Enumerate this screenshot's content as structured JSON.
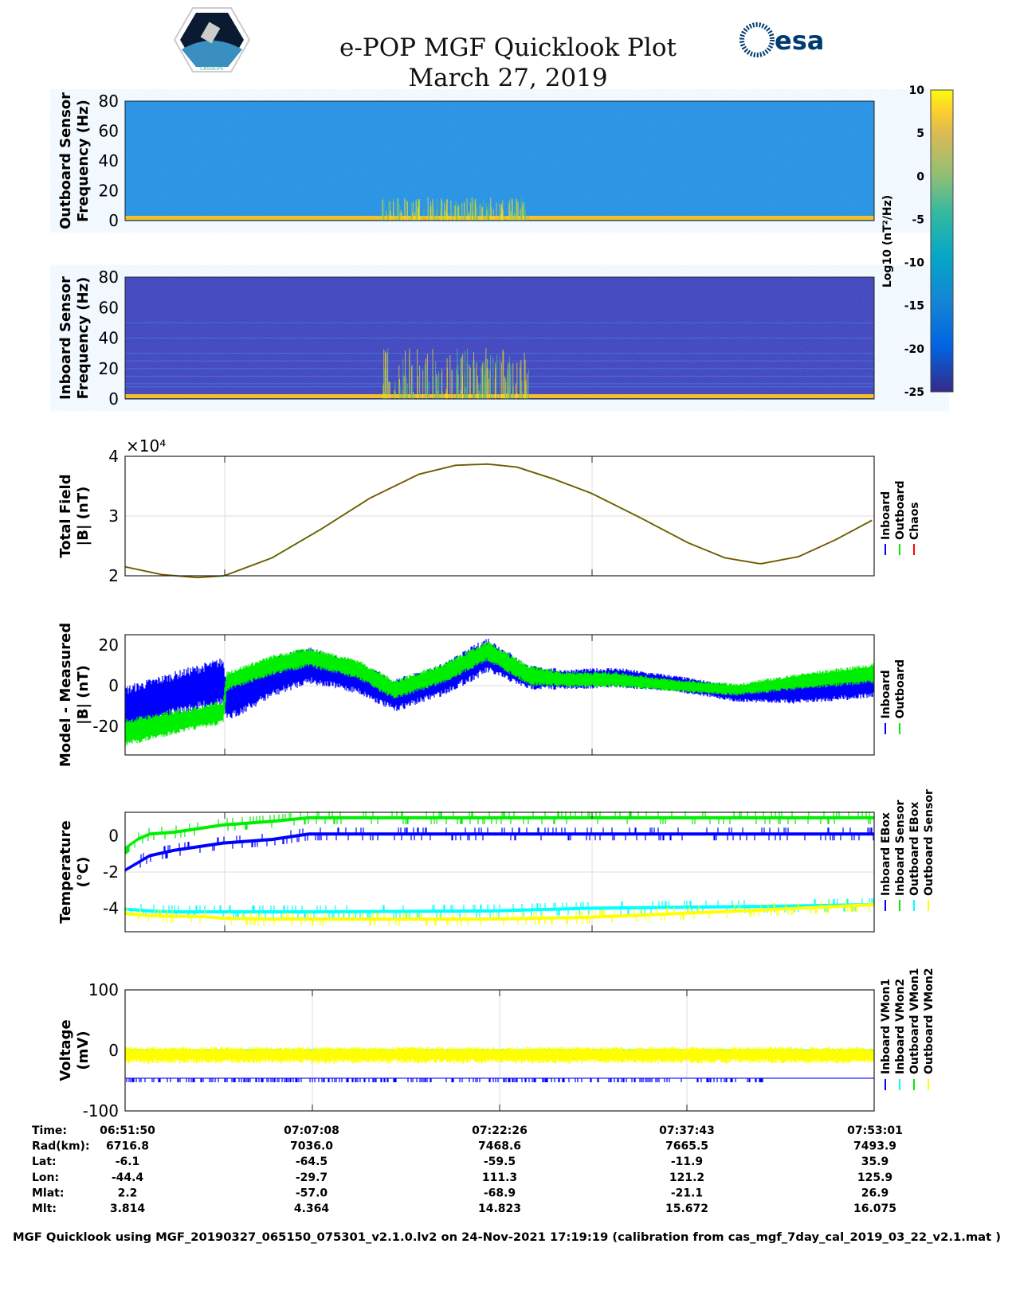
{
  "header": {
    "title": "e-POP MGF Quicklook Plot",
    "date": "March 27, 2019",
    "logo_left": "CASSIOPE",
    "logo_right": "esa"
  },
  "footer": "MGF Quicklook using MGF_20190327_065150_075301_v2.1.0.lv2 on 24-Nov-2021 17:19:19 (calibration from cas_mgf_7day_cal_2019_03_22_v2.1.mat )",
  "ephemeris": {
    "labels": [
      "Time:",
      "Rad(km):",
      "Lat:",
      "Lon:",
      "Mlat:",
      "Mlt:"
    ],
    "columns": [
      [
        "06:51:50",
        "6716.8",
        "-6.1",
        "-44.4",
        "2.2",
        "3.814"
      ],
      [
        "07:07:08",
        "7036.0",
        "-64.5",
        "-29.7",
        "-57.0",
        "4.364"
      ],
      [
        "07:22:26",
        "7468.6",
        "-59.5",
        "111.3",
        "-68.9",
        "14.823"
      ],
      [
        "07:37:43",
        "7665.5",
        "-11.9",
        "121.2",
        "-21.1",
        "15.672"
      ],
      [
        "07:53:01",
        "7493.9",
        "35.9",
        "125.9",
        "26.9",
        "16.075"
      ]
    ]
  },
  "colorbar": {
    "label": "Log10 (nT²/Hz)",
    "ticks": [
      "10",
      "5",
      "0",
      "-5",
      "-10",
      "-15",
      "-20",
      "-25"
    ],
    "range": [
      -25,
      10
    ]
  },
  "chart_data": [
    {
      "type": "heatmap",
      "name": "outboard-spectrogram",
      "ylabel": [
        "Outboard Sensor",
        "Frequency (Hz)"
      ],
      "ylim": [
        0,
        80
      ],
      "yticks": [
        "80",
        "60",
        "40",
        "20",
        "0"
      ],
      "background_level": -17,
      "low_freq_level": 3
    },
    {
      "type": "heatmap",
      "name": "inboard-spectrogram",
      "ylabel": [
        "Inboard Sensor",
        "Frequency (Hz)"
      ],
      "ylim": [
        0,
        80
      ],
      "yticks": [
        "80",
        "60",
        "40",
        "20",
        "0"
      ],
      "background_level": -23,
      "low_freq_level": 3
    },
    {
      "type": "line",
      "name": "total-field",
      "ylabel": [
        "Total Field",
        "|B| (nT)"
      ],
      "multiplier": "×10⁴",
      "ylim": [
        2,
        4
      ],
      "yticks": [
        "4",
        "3",
        "2"
      ],
      "x_minutes": [
        0,
        3,
        5.9,
        8.1,
        12,
        16,
        20,
        24,
        27,
        29.6,
        32,
        35,
        38.1,
        42,
        46,
        49,
        51.9,
        55,
        58,
        61.2
      ],
      "values": [
        2.15,
        2.02,
        1.97,
        2.0,
        2.3,
        2.78,
        3.3,
        3.7,
        3.85,
        3.87,
        3.82,
        3.62,
        3.38,
        2.98,
        2.55,
        2.3,
        2.2,
        2.32,
        2.6,
        2.95
      ],
      "legend": [
        {
          "name": "Inboard",
          "color": "#0000ff"
        },
        {
          "name": "Outboard",
          "color": "#00ee00"
        },
        {
          "name": "Chaos",
          "color": "#ff0000"
        }
      ]
    },
    {
      "type": "band",
      "name": "model-minus-measured",
      "ylabel": [
        "Model - Measured",
        "|B| (nT)"
      ],
      "ylim": [
        -34,
        25
      ],
      "yticks": [
        "20",
        "0",
        "-20"
      ],
      "x_minutes": [
        0,
        4,
        8,
        8.3,
        12,
        15,
        19,
        22,
        26,
        29.6,
        33,
        36,
        40,
        45,
        50,
        55,
        61.2
      ],
      "series": [
        {
          "name": "Inboard",
          "color": "#0000ff",
          "center": [
            -12,
            -4,
            2,
            -8,
            4,
            10,
            4,
            -5,
            3,
            15,
            4,
            3,
            4,
            1,
            -4,
            -3,
            1
          ],
          "spread": [
            12,
            11,
            12,
            10,
            10,
            9,
            8,
            8,
            8,
            9,
            6,
            5,
            5,
            4,
            4,
            6,
            7
          ]
        },
        {
          "name": "Outboard",
          "color": "#00ee00",
          "center": [
            -23,
            -18,
            -13,
            2,
            10,
            14,
            8,
            -2,
            6,
            17,
            5,
            3,
            3,
            0,
            -2,
            2,
            6
          ],
          "spread": [
            7,
            6,
            6,
            5,
            5,
            5,
            5,
            5,
            5,
            5,
            5,
            4,
            4,
            3,
            3,
            4,
            5
          ]
        }
      ]
    },
    {
      "type": "step",
      "name": "temperature",
      "ylabel": [
        "Temperature",
        "(°C)"
      ],
      "ylim": [
        -5.3,
        1.3
      ],
      "yticks": [
        "0",
        "-2",
        "-4"
      ],
      "x_minutes": [
        0,
        1,
        2,
        4,
        6,
        8,
        12,
        15,
        30,
        38,
        45,
        52,
        61.2
      ],
      "series": [
        {
          "name": "Inboard EBox",
          "color": "#0000ff",
          "values": [
            -1.9,
            -1.5,
            -1.1,
            -0.8,
            -0.6,
            -0.4,
            -0.2,
            0.1,
            0.1,
            0.1,
            0.1,
            0.1,
            0.1
          ]
        },
        {
          "name": "Inboard Sensor",
          "color": "#00ee00",
          "values": [
            -0.7,
            -0.2,
            0.1,
            0.2,
            0.4,
            0.6,
            0.8,
            1.0,
            1.0,
            1.0,
            1.0,
            1.0,
            1.0
          ]
        },
        {
          "name": "Outboard EBox",
          "color": "#00ffff",
          "values": [
            -4.05,
            -4.1,
            -4.15,
            -4.2,
            -4.2,
            -4.2,
            -4.2,
            -4.2,
            -4.15,
            -4.0,
            -3.95,
            -3.9,
            -3.8
          ]
        },
        {
          "name": "Outboard Sensor",
          "color": "#ffff00",
          "values": [
            -4.3,
            -4.35,
            -4.4,
            -4.45,
            -4.45,
            -4.55,
            -4.6,
            -4.6,
            -4.6,
            -4.5,
            -4.3,
            -4.1,
            -3.8
          ]
        }
      ]
    },
    {
      "type": "line",
      "name": "voltage",
      "ylabel": [
        "Voltage",
        "(mV)"
      ],
      "ylim": [
        -100,
        100
      ],
      "yticks": [
        "100",
        "0",
        "-100"
      ],
      "x_minutes": [
        0,
        61.2
      ],
      "series": [
        {
          "name": "Inboard VMon1",
          "color": "#0000ff",
          "values": [
            -46,
            -46
          ]
        },
        {
          "name": "Inboard VMon2",
          "color": "#00ffff",
          "values": [
            1,
            1
          ]
        },
        {
          "name": "Outboard VMon1",
          "color": "#00ee00",
          "values": [
            -8,
            -8
          ]
        },
        {
          "name": "Outboard VMon2",
          "color": "#ffff00",
          "values": [
            -8,
            -8
          ]
        }
      ]
    }
  ]
}
